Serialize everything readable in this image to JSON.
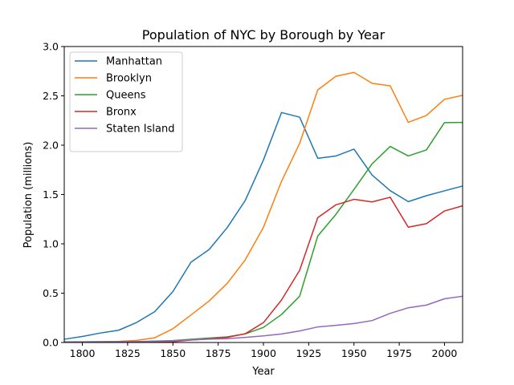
{
  "chart_data": {
    "type": "line",
    "title": "Population of NYC by Borough by Year",
    "xlabel": "Year",
    "ylabel": "Population (millions)",
    "xlim": [
      1790,
      2010
    ],
    "ylim": [
      0,
      3.0
    ],
    "xticks": [
      1800,
      1825,
      1850,
      1875,
      1900,
      1925,
      1950,
      1975,
      2000
    ],
    "yticks": [
      "0.0",
      "0.5",
      "1.0",
      "1.5",
      "2.0",
      "2.5",
      "3.0"
    ],
    "grid": false,
    "legend_position": "top-left",
    "x": [
      1790,
      1800,
      1810,
      1820,
      1830,
      1840,
      1850,
      1860,
      1870,
      1880,
      1890,
      1900,
      1910,
      1920,
      1930,
      1940,
      1950,
      1960,
      1970,
      1980,
      1990,
      2000,
      2010
    ],
    "series": [
      {
        "name": "Manhattan",
        "color": "#1f77b4",
        "values": [
          0.033,
          0.061,
          0.096,
          0.124,
          0.203,
          0.313,
          0.516,
          0.814,
          0.942,
          1.164,
          1.441,
          1.85,
          2.331,
          2.284,
          1.867,
          1.89,
          1.96,
          1.698,
          1.539,
          1.428,
          1.488,
          1.537,
          1.586
        ]
      },
      {
        "name": "Brooklyn",
        "color": "#ff7f0e",
        "values": [
          0.005,
          0.006,
          0.008,
          0.011,
          0.021,
          0.048,
          0.139,
          0.279,
          0.42,
          0.599,
          0.839,
          1.167,
          1.634,
          2.018,
          2.56,
          2.698,
          2.738,
          2.627,
          2.602,
          2.231,
          2.301,
          2.465,
          2.505
        ]
      },
      {
        "name": "Queens",
        "color": "#2ca02c",
        "values": [
          0.006,
          0.007,
          0.008,
          0.009,
          0.009,
          0.014,
          0.019,
          0.032,
          0.045,
          0.057,
          0.087,
          0.153,
          0.284,
          0.469,
          1.079,
          1.298,
          1.551,
          1.81,
          1.987,
          1.891,
          1.952,
          2.229,
          2.231
        ]
      },
      {
        "name": "Bronx",
        "color": "#d62728",
        "values": [
          0.002,
          0.002,
          0.003,
          0.003,
          0.003,
          0.005,
          0.008,
          0.024,
          0.037,
          0.052,
          0.089,
          0.201,
          0.431,
          0.732,
          1.265,
          1.395,
          1.451,
          1.425,
          1.472,
          1.169,
          1.204,
          1.333,
          1.385
        ]
      },
      {
        "name": "Staten Island",
        "color": "#9467bd",
        "values": [
          0.004,
          0.005,
          0.006,
          0.007,
          0.008,
          0.011,
          0.015,
          0.026,
          0.034,
          0.039,
          0.052,
          0.067,
          0.086,
          0.117,
          0.158,
          0.174,
          0.192,
          0.222,
          0.295,
          0.352,
          0.379,
          0.443,
          0.469
        ]
      }
    ]
  }
}
